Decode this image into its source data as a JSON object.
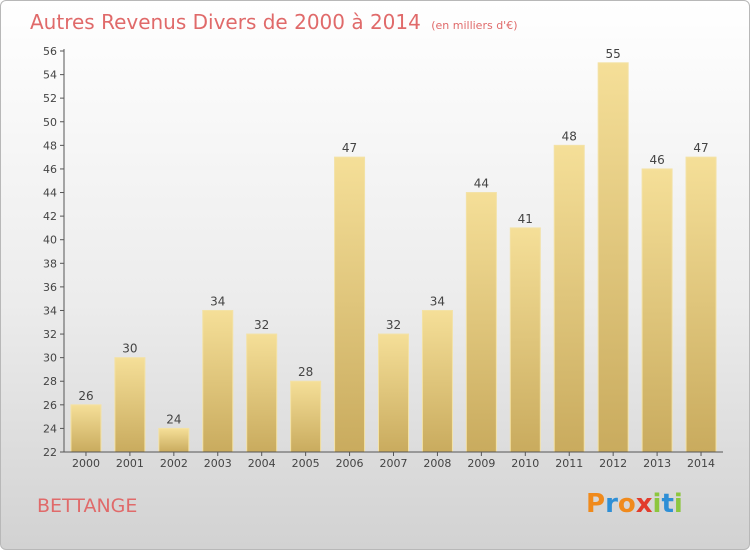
{
  "chart_data": {
    "type": "bar",
    "title": "Autres Revenus Divers de 2000 à 2014",
    "subtitle": "(en milliers d'€)",
    "categories": [
      "2000",
      "2001",
      "2002",
      "2003",
      "2004",
      "2005",
      "2006",
      "2007",
      "2008",
      "2009",
      "2010",
      "2011",
      "2012",
      "2013",
      "2014"
    ],
    "values": [
      26,
      30,
      24,
      34,
      32,
      28,
      47,
      32,
      34,
      44,
      41,
      48,
      55,
      46,
      47
    ],
    "ylim": [
      22,
      56
    ],
    "ytick_step": 2,
    "grid": false,
    "bar_color": "#e9cf85",
    "xlabel": "",
    "ylabel": ""
  },
  "place_name": "BETTANGE",
  "logo": {
    "letters": [
      "P",
      "r",
      "o",
      "x",
      "i",
      "t",
      "i"
    ],
    "colors": [
      "#f08a1c",
      "#2e8fd6",
      "#f08a1c",
      "#e23c2c",
      "#8cc63e",
      "#2e8fd6",
      "#8cc63e"
    ]
  }
}
